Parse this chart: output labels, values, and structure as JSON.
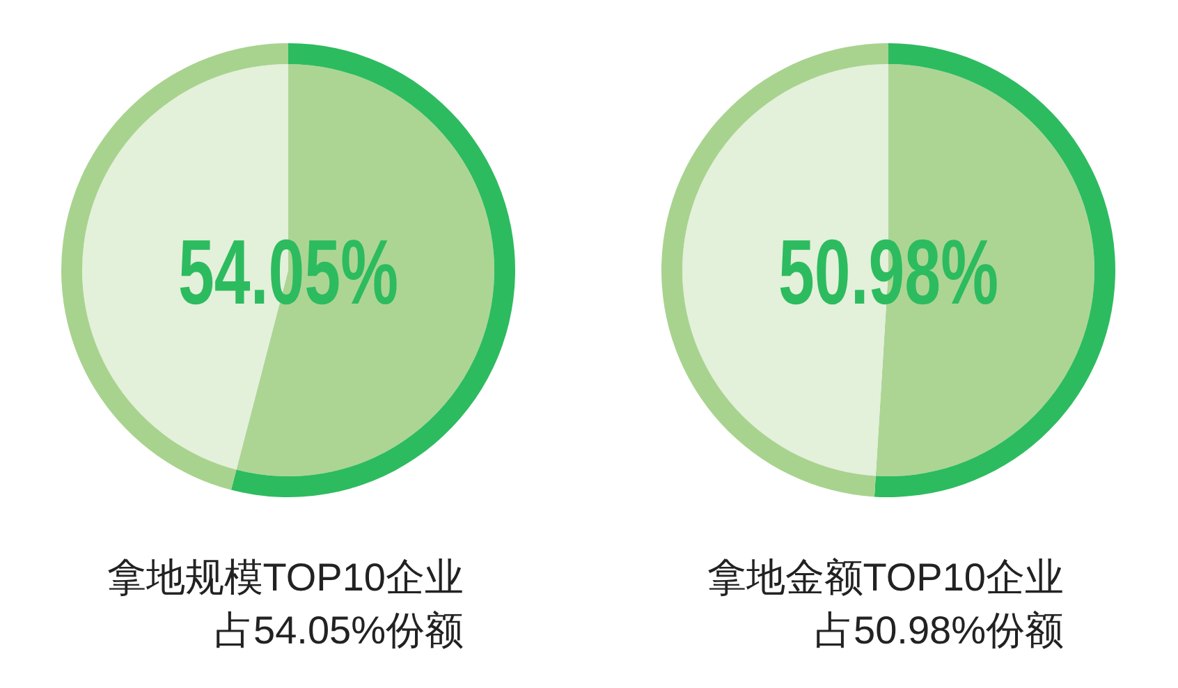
{
  "chart_data": [
    {
      "type": "pie",
      "categories": [
        null,
        null
      ],
      "value_labels": [
        "54.05%",
        null
      ],
      "series": [
        {
          "values": [
            54.05,
            45.95
          ],
          "colors": [
            "#acd594",
            "#e3f0da"
          ]
        },
        {
          "values": [
            54.05,
            45.95
          ],
          "colors": [
            "#2dbb5f",
            "#a8d38e"
          ]
        }
      ],
      "annotations": [
        "拿地规模TOP10企业",
        "占54.05%份额"
      ]
    },
    {
      "type": "pie",
      "categories": [
        null,
        null
      ],
      "value_labels": [
        "50.98%",
        null
      ],
      "series": [
        {
          "values": [
            50.98,
            49.02
          ],
          "colors": [
            "#acd594",
            "#e3f0da"
          ]
        },
        {
          "values": [
            50.98,
            49.02
          ],
          "colors": [
            "#2dbb5f",
            "#a8d38e"
          ]
        }
      ],
      "annotations": [
        "拿地金额TOP10企业",
        "占50.98%份额"
      ]
    }
  ]
}
